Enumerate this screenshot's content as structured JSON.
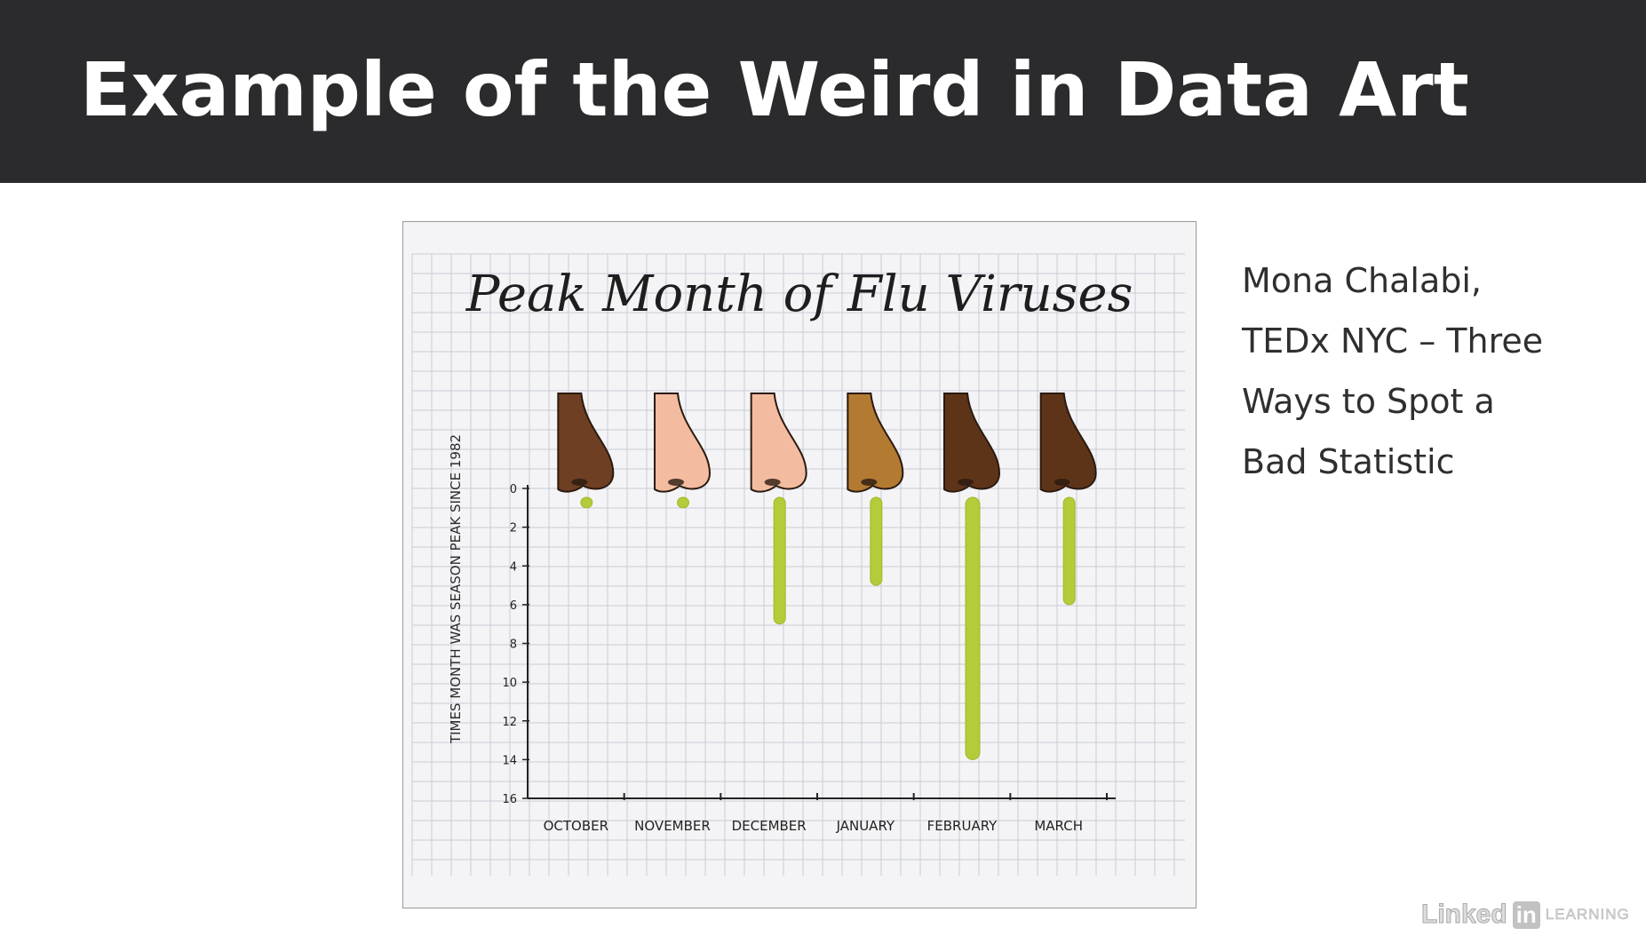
{
  "slide": {
    "title": "Example of the Weird in Data Art",
    "caption_lines": [
      "Mona Chalabi,",
      "TEDx NYC – Three",
      "Ways to Spot a",
      "Bad Statistic"
    ],
    "brand": {
      "word": "Linked",
      "in": "in",
      "suffix": "LEARNING"
    }
  },
  "colors": {
    "header_bg": "#2b2b2d",
    "snot": "#b4cc3a",
    "grid": "#c9ccd6"
  },
  "chart_data": {
    "type": "bar",
    "title": "Peak Month of Flu Viruses",
    "ylabel": "TIMES MONTH WAS SEASON PEAK SINCE 1982",
    "xlabel": "",
    "ylim": [
      0,
      16
    ],
    "inverted_y": true,
    "yticks": [
      "0",
      "2",
      "4",
      "6",
      "8",
      "10",
      "12",
      "14",
      "16"
    ],
    "categories": [
      "OCTOBER",
      "NOVEMBER",
      "DECEMBER",
      "JANUARY",
      "FEBRUARY",
      "MARCH"
    ],
    "values": [
      1,
      1,
      7,
      5,
      14,
      6
    ],
    "nose_colors": [
      "#6e3f22",
      "#f3bca0",
      "#f3bca0",
      "#b37a32",
      "#5e3419",
      "#5e3419"
    ],
    "grid": true
  }
}
